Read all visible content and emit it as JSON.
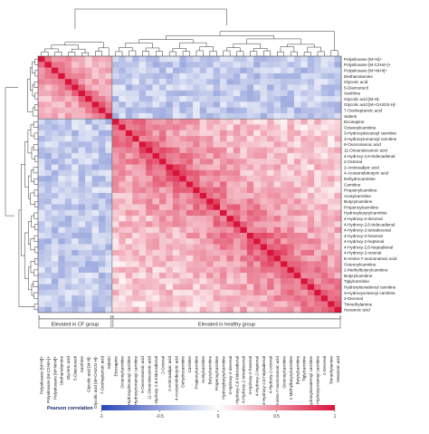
{
  "chart_data": {
    "type": "heatmap",
    "title": "",
    "metabolites": [
      "Polysiloxane [M+H]+",
      "Polysiloxane [M-C2H4+]+",
      "Polysiloxane [M+NH4]+",
      "Diethanolamine",
      "Glyceric acid",
      "5-Diazouracil",
      "Xanthine",
      "Glycolic acid [M-H]-",
      "Glycolic acid [M+CH2O2-H]-",
      "7-Oxoheptanoic acid",
      "Siderin",
      "Eicosapine",
      "Octanoylcarnitine",
      "3-Hydroxydecanoyl carnitine",
      "3-Hydroxynonanoyl carnitine",
      "9-Oxononanoic acid",
      "11-Oxoundecanoic acid",
      "4-Hydroxy-2,6-tridecadienal",
      "2-Octenal",
      "2-Aminoadipic acid",
      "4-Acetamidobutyric acid",
      "Dehydrocarnitine",
      "Carnitine",
      "Propionylcarnitine",
      "Acetylcarnitine",
      "Butyrylcarnitine",
      "Propenoylcarnitine",
      "Hydroxybutyrylcarnitine",
      "4-Hydroxy-2-decenal",
      "4-Hydroxy-2,6-tridecadienal",
      "4-Hydroxy-2-tetradecenal",
      "4-Hydroxy-2-hexenal",
      "4-Hydroxy-2-heptenal",
      "4-Hydroxy-2,6-heptadienal",
      "4-Hydroxy-2-octenal",
      "8-Amino-7-oxononanoic acid",
      "Octenoylcarnitine",
      "2-Methylbutyrylcarnitine",
      "Butyrylcarnitine",
      "Tiglylcarnitine",
      "Hydroxyisovaleroyl carnitine",
      "3-Hydroxyoctanoyl carnitine",
      "2-Decenal",
      "Trimethylamine",
      "Hexanoic acid"
    ],
    "groups": [
      {
        "name": "Elevated in CF group",
        "count": 11
      },
      {
        "name": "Elevated in healthy group",
        "count": 34
      }
    ],
    "legend": {
      "title": "Pearson correlation",
      "range": [
        -1,
        1
      ],
      "ticks": [
        "-1",
        "-0.5",
        "0",
        "0.5",
        "1"
      ]
    },
    "colors": {
      "low": "#2a47b8",
      "mid": "#ffffff",
      "high": "#d9143a"
    }
  }
}
